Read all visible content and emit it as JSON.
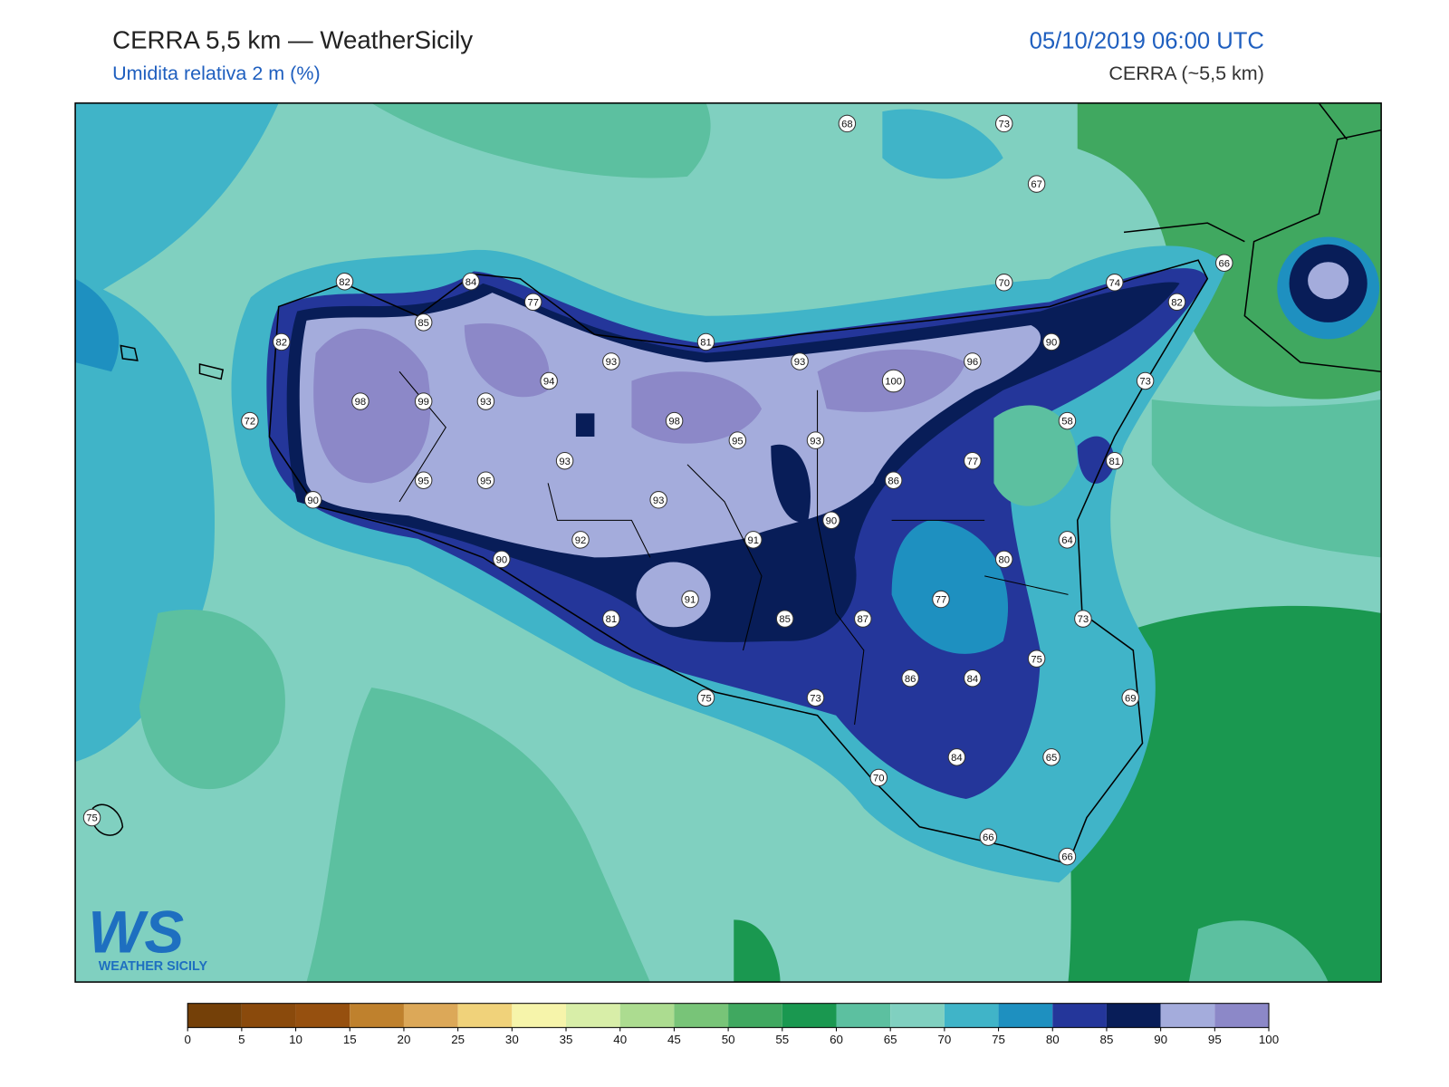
{
  "header": {
    "title": "CERRA 5,5 km — WeatherSicily",
    "subtitle": "Umidita relativa 2 m (%)",
    "datetime": "05/10/2019 06:00 UTC",
    "model": "CERRA (~5,5 km)"
  },
  "logo": {
    "mark": "WS",
    "text": "WEATHER SICILY"
  },
  "stations": [
    68,
    73,
    67,
    82,
    84,
    77,
    85,
    82,
    81,
    93,
    93,
    90,
    70,
    74,
    66,
    82,
    96,
    100,
    73,
    94,
    98,
    99,
    93,
    98,
    58,
    72,
    95,
    93,
    93,
    77,
    81,
    95,
    95,
    86,
    90,
    93,
    90,
    92,
    91,
    64,
    90,
    80,
    91,
    77,
    81,
    85,
    87,
    73,
    75,
    86,
    84,
    75,
    73,
    69,
    84,
    65,
    70,
    75,
    66,
    66
  ],
  "colorbar": {
    "ticks": [
      0,
      5,
      10,
      15,
      20,
      25,
      30,
      35,
      40,
      45,
      50,
      55,
      60,
      65,
      70,
      75,
      80,
      85,
      90,
      95,
      100
    ],
    "colors": [
      "#744008",
      "#8a4a0c",
      "#96500f",
      "#bf812d",
      "#dca858",
      "#f0d27a",
      "#f6f4aa",
      "#d8eea8",
      "#acdc90",
      "#78c478",
      "#40a860",
      "#1a9850",
      "#5cc0a0",
      "#80d0c0",
      "#40b4c8",
      "#1e90c0",
      "#24369a",
      "#081d58",
      "#a4acdc",
      "#8c88c8"
    ]
  }
}
